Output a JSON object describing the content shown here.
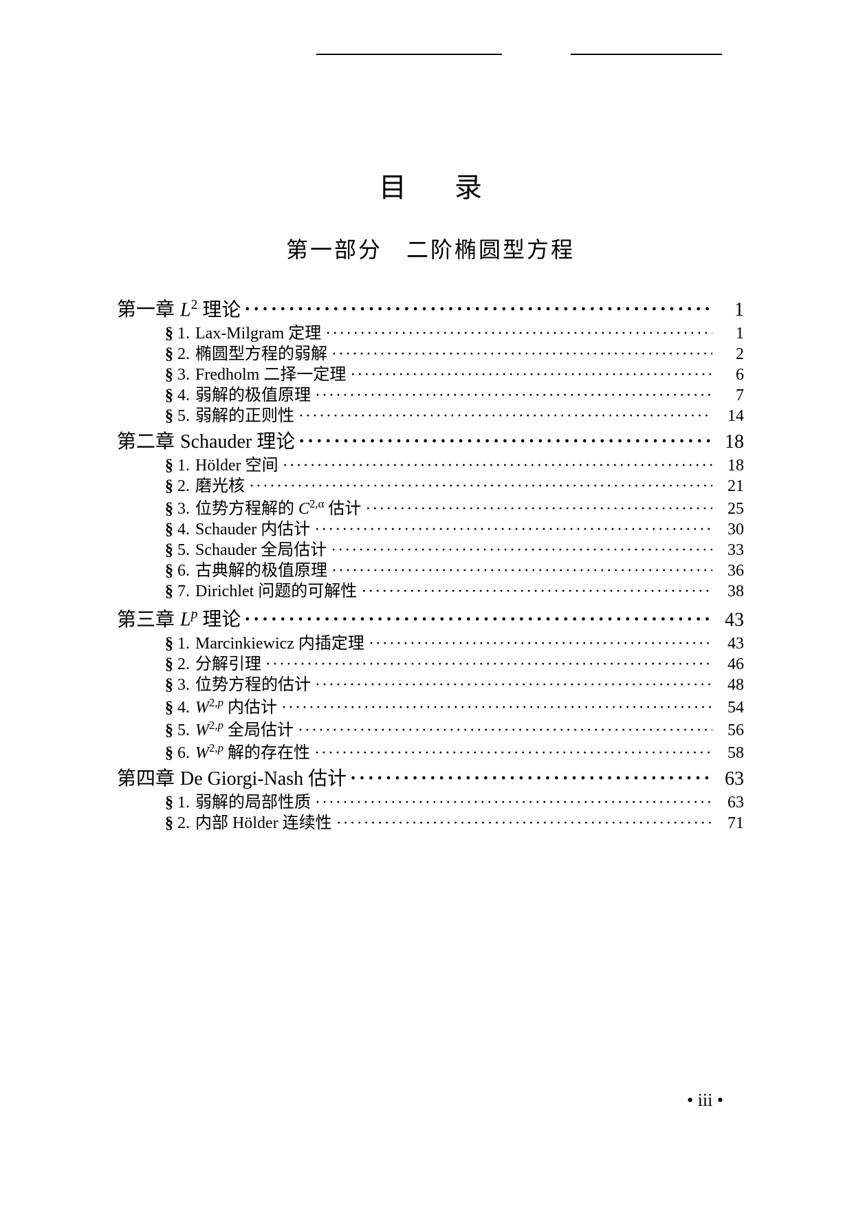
{
  "title": "目录",
  "part": "第一部分　二阶椭圆型方程",
  "footer": "• iii •",
  "chapters": [
    {
      "label": "第一章",
      "title_html": "<span class='it'>L</span><span class='sup'>2</span> 理论",
      "page": "1",
      "sections": [
        {
          "num": "1",
          "title_html": "Lax-Milgram 定理",
          "page": "1"
        },
        {
          "num": "2",
          "title_html": "椭圆型方程的弱解",
          "page": "2"
        },
        {
          "num": "3",
          "title_html": "Fredholm 二择一定理",
          "page": "6"
        },
        {
          "num": "4",
          "title_html": "弱解的极值原理",
          "page": "7"
        },
        {
          "num": "5",
          "title_html": "弱解的正则性",
          "page": "14"
        }
      ]
    },
    {
      "label": "第二章",
      "title_html": "Schauder 理论",
      "page": "18",
      "sections": [
        {
          "num": "1",
          "title_html": "Hölder 空间",
          "page": "18"
        },
        {
          "num": "2",
          "title_html": "磨光核",
          "page": "21"
        },
        {
          "num": "3",
          "title_html": "位势方程解的 <span class='it'>C</span><span class='sup'>2,α</span> 估计",
          "page": "25"
        },
        {
          "num": "4",
          "title_html": "Schauder 内估计",
          "page": "30"
        },
        {
          "num": "5",
          "title_html": "Schauder 全局估计",
          "page": "33"
        },
        {
          "num": "6",
          "title_html": "古典解的极值原理",
          "page": "36"
        },
        {
          "num": "7",
          "title_html": "Dirichlet 问题的可解性",
          "page": "38"
        }
      ]
    },
    {
      "label": "第三章",
      "title_html": "<span class='it'>L</span><span class='sup sup-it'>p</span> 理论",
      "page": "43",
      "sections": [
        {
          "num": "1",
          "title_html": "Marcinkiewicz 内插定理",
          "page": "43"
        },
        {
          "num": "2",
          "title_html": "分解引理",
          "page": "46"
        },
        {
          "num": "3",
          "title_html": "位势方程的估计",
          "page": "48"
        },
        {
          "num": "4",
          "title_html": "<span class='it'>W</span><span class='sup'>2,<span class='sup-it'>p</span></span> 内估计",
          "page": "54"
        },
        {
          "num": "5",
          "title_html": "<span class='it'>W</span><span class='sup'>2,<span class='sup-it'>p</span></span> 全局估计",
          "page": "56"
        },
        {
          "num": "6",
          "title_html": "<span class='it'>W</span><span class='sup'>2,<span class='sup-it'>p</span></span> 解的存在性",
          "page": "58"
        }
      ]
    },
    {
      "label": "第四章",
      "title_html": "De Giorgi-Nash 估计",
      "page": "63",
      "sections": [
        {
          "num": "1",
          "title_html": "弱解的局部性质",
          "page": "63"
        },
        {
          "num": "2",
          "title_html": "内部 Hölder 连续性",
          "page": "71"
        }
      ]
    }
  ]
}
